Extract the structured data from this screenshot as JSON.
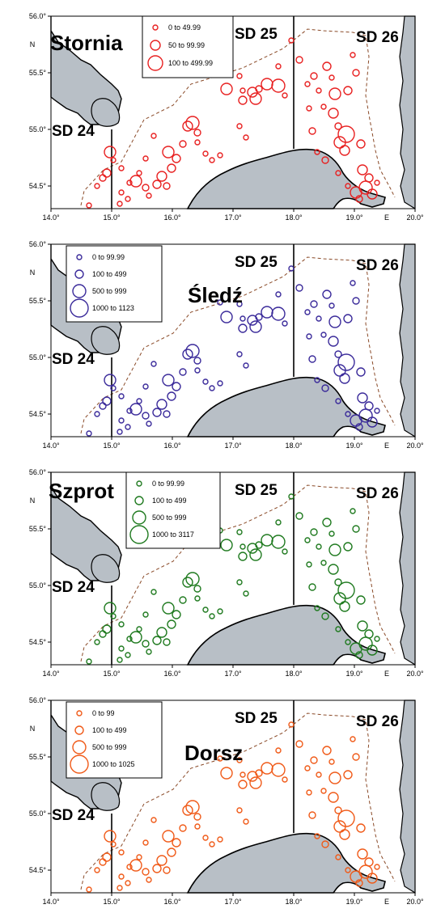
{
  "axes": {
    "x_ticks": [
      "14.0°",
      "15.0°",
      "16.0°",
      "17.0°",
      "18.0°",
      "19.0°",
      "20.0°"
    ],
    "y_ticks": [
      "56.0°",
      "55.5°",
      "55.0°",
      "54.5°"
    ],
    "n_label": "N",
    "e_label": "E"
  },
  "sd_labels": {
    "sd24": "SD  24",
    "sd25": "SD  25",
    "sd26": "SD  26"
  },
  "panels": [
    {
      "species": "Stornia",
      "color": "#e82020",
      "legend": [
        "0  to  49.99",
        "50  to  99.99",
        "100  to  499.99"
      ]
    },
    {
      "species": "Śledź",
      "color": "#3a2a9a",
      "legend": [
        "0  to  99.99",
        "100  to  499",
        "500  to  999",
        "1000  to  1123"
      ]
    },
    {
      "species": "Szprot",
      "color": "#1f7a1f",
      "legend": [
        "0  to  99.99",
        "100  to  499",
        "500  to  999",
        "1000  to  3117"
      ]
    },
    {
      "species": "Dorsz",
      "color": "#f05a18",
      "legend": [
        "0  to  99",
        "100  to  499",
        "500  to  999",
        "1000  to  1025"
      ]
    }
  ]
}
